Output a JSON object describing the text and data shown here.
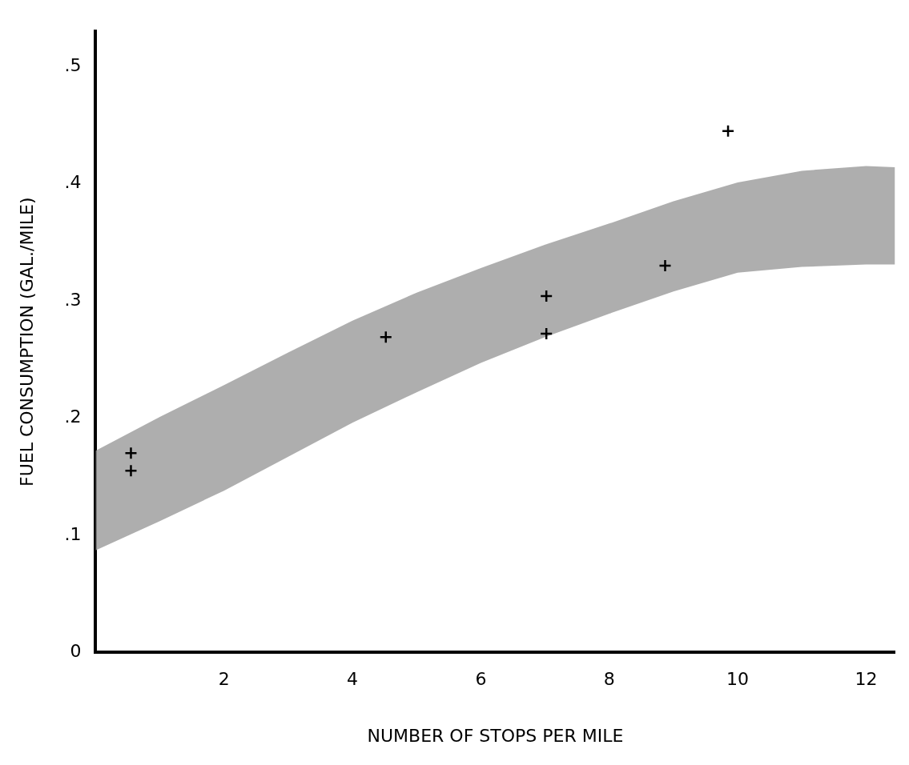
{
  "chart_data": {
    "type": "scatter",
    "xlabel": "NUMBER OF STOPS PER MILE",
    "ylabel": "FUEL CONSUMPTION (GAL./MILE)",
    "xlim": [
      0,
      12.45
    ],
    "xticks": [
      2,
      4,
      6,
      8,
      10,
      12
    ],
    "ylim": [
      0,
      0.53
    ],
    "yticks": [
      0,
      {
        "value": 0.1,
        "label": ".1"
      },
      {
        "value": 0.2,
        "label": ".2"
      },
      {
        "value": 0.3,
        "label": ".3"
      },
      {
        "value": 0.4,
        "label": ".4"
      },
      {
        "value": 0.5,
        "label": ".5"
      }
    ],
    "grid": false,
    "legend": false,
    "marker": "cross",
    "series": [
      {
        "type": "area",
        "color": "#9a9a9a",
        "x": [
          0,
          1,
          2,
          3,
          4,
          5,
          6,
          7,
          8,
          9,
          10,
          11,
          12,
          12.45
        ],
        "values": [
          null,
          null,
          null,
          null,
          null,
          null,
          null,
          null,
          null,
          null,
          null,
          null,
          null,
          null
        ],
        "lower": [
          0.087,
          0.112,
          0.138,
          0.167,
          0.196,
          0.222,
          0.247,
          0.269,
          0.289,
          0.308,
          0.324,
          0.329,
          0.331,
          0.331
        ],
        "upper": [
          0.172,
          0.201,
          0.228,
          0.256,
          0.283,
          0.307,
          0.328,
          0.348,
          0.366,
          0.385,
          0.401,
          0.411,
          0.415,
          0.414
        ]
      },
      {
        "color": "#000000",
        "x": [
          0.55,
          0.55,
          4.52,
          7.02,
          7.02,
          8.87,
          9.85
        ],
        "values": [
          0.17,
          0.155,
          0.269,
          0.304,
          0.272,
          0.33,
          0.445
        ]
      }
    ]
  }
}
